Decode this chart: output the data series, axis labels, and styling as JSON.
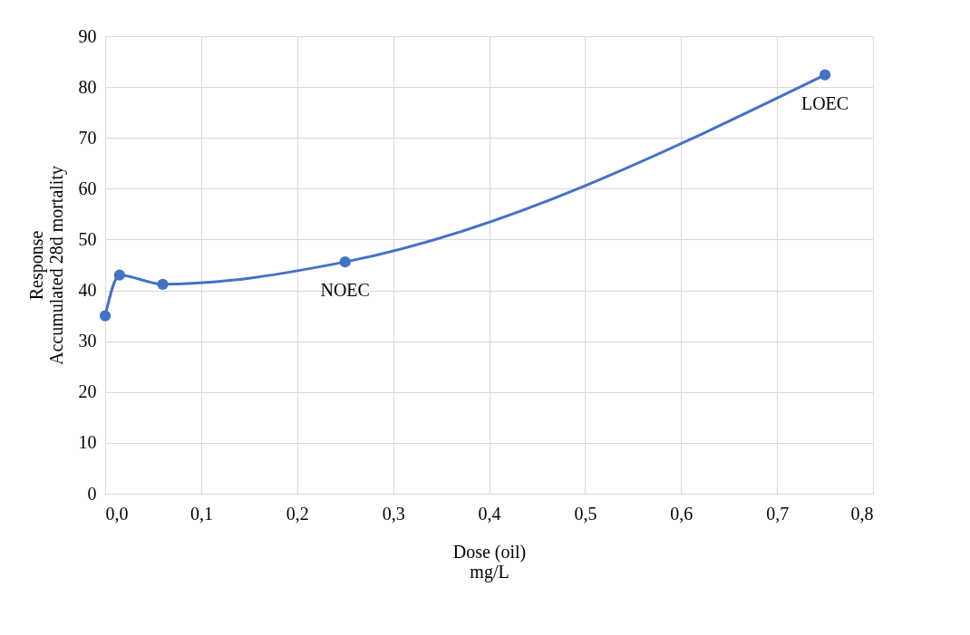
{
  "chart_data": {
    "type": "line",
    "xlabel": "Dose (oil)\nmg/L",
    "ylabel": "Response\nAccumulated 28d mortality",
    "x": [
      0,
      0.015,
      0.06,
      0.25,
      0.75
    ],
    "series": [
      {
        "color": "#4472c4",
        "values": [
          35,
          43,
          41.2,
          45.6,
          82.4
        ]
      }
    ],
    "xlim": [
      0,
      0.8
    ],
    "xticks": [
      {
        "value": 0,
        "label": "0,0"
      },
      {
        "value": 0.1,
        "label": "0,1"
      },
      {
        "value": 0.2,
        "label": "0,2"
      },
      {
        "value": 0.3,
        "label": "0,3"
      },
      {
        "value": 0.4,
        "label": "0,4"
      },
      {
        "value": 0.5,
        "label": "0,5"
      },
      {
        "value": 0.6,
        "label": "0,6"
      },
      {
        "value": 0.7,
        "label": "0,7"
      },
      {
        "value": 0.8,
        "label": "0,8"
      }
    ],
    "ylim": [
      0,
      90
    ],
    "yticks": [
      0,
      10,
      20,
      30,
      40,
      50,
      60,
      70,
      80,
      90
    ],
    "annotations": [
      {
        "text": "NOEC",
        "x": 0.25,
        "y": 45.6
      },
      {
        "text": "LOEC",
        "x": 0.75,
        "y": 82.4
      }
    ],
    "grid": true,
    "marker": "circle",
    "line_style": "solid"
  }
}
